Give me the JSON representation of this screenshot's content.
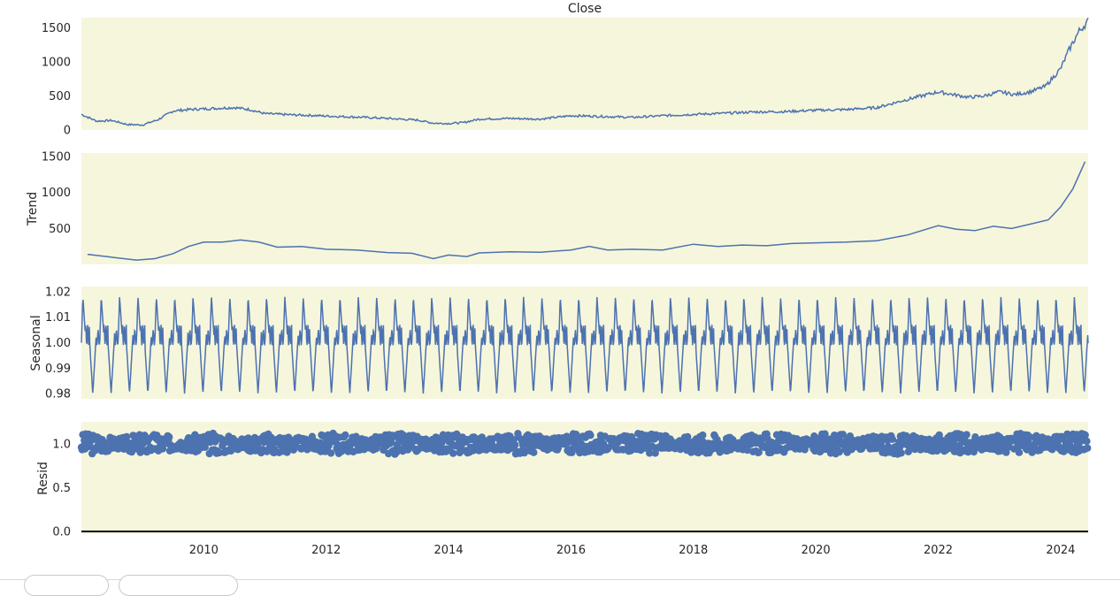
{
  "chart_data": [
    {
      "type": "line",
      "title": "Close",
      "ylabel": "",
      "xlim": [
        2008.0,
        2024.45
      ],
      "ylim": [
        0,
        1650
      ],
      "yticks": [
        0,
        500,
        1000,
        1500
      ],
      "x": [
        2008.0,
        2008.25,
        2008.5,
        2008.75,
        2009.0,
        2009.25,
        2009.5,
        2009.75,
        2010.0,
        2010.25,
        2010.5,
        2010.75,
        2011.0,
        2011.25,
        2011.5,
        2011.75,
        2012.0,
        2012.5,
        2013.0,
        2013.5,
        2013.75,
        2014.0,
        2014.25,
        2014.5,
        2015.0,
        2015.5,
        2016.0,
        2016.5,
        2017.0,
        2017.5,
        2018.0,
        2018.5,
        2019.0,
        2019.5,
        2020.0,
        2020.5,
        2021.0,
        2021.5,
        2022.0,
        2022.25,
        2022.5,
        2022.75,
        2023.0,
        2023.25,
        2023.5,
        2023.75,
        2024.0,
        2024.15,
        2024.3,
        2024.45
      ],
      "y": [
        230,
        130,
        140,
        80,
        75,
        150,
        280,
        300,
        310,
        320,
        330,
        300,
        240,
        230,
        220,
        215,
        205,
        190,
        170,
        145,
        100,
        95,
        110,
        160,
        170,
        160,
        210,
        200,
        185,
        210,
        230,
        245,
        265,
        270,
        290,
        300,
        330,
        450,
        560,
        520,
        480,
        500,
        560,
        520,
        560,
        640,
        900,
        1200,
        1450,
        1600
      ]
    },
    {
      "type": "line",
      "title": "",
      "ylabel": "Trend",
      "xlim": [
        2008.0,
        2024.45
      ],
      "ylim": [
        0,
        1550
      ],
      "yticks": [
        500,
        1000,
        1500
      ],
      "x": [
        2008.1,
        2008.5,
        2008.9,
        2009.2,
        2009.5,
        2009.75,
        2010.0,
        2010.3,
        2010.6,
        2010.9,
        2011.2,
        2011.6,
        2012.0,
        2012.5,
        2013.0,
        2013.4,
        2013.75,
        2014.0,
        2014.3,
        2014.5,
        2015.0,
        2015.5,
        2016.0,
        2016.3,
        2016.6,
        2017.0,
        2017.5,
        2018.0,
        2018.4,
        2018.8,
        2019.2,
        2019.6,
        2020.0,
        2020.5,
        2021.0,
        2021.5,
        2022.0,
        2022.3,
        2022.6,
        2022.9,
        2023.2,
        2023.5,
        2023.8,
        2024.0,
        2024.2,
        2024.4
      ],
      "y": [
        140,
        100,
        60,
        80,
        150,
        250,
        310,
        310,
        340,
        310,
        240,
        250,
        210,
        200,
        165,
        155,
        80,
        130,
        110,
        160,
        175,
        170,
        200,
        250,
        200,
        210,
        200,
        280,
        250,
        270,
        260,
        290,
        300,
        310,
        330,
        410,
        540,
        490,
        470,
        530,
        500,
        560,
        620,
        800,
        1050,
        1430
      ]
    },
    {
      "type": "line",
      "title": "",
      "ylabel": "Seasonal",
      "xlim": [
        2008.0,
        2024.45
      ],
      "ylim": [
        0.978,
        1.022
      ],
      "yticks": [
        0.98,
        0.99,
        1.0,
        1.01,
        1.02
      ],
      "ytick_labels": [
        "0.98",
        "0.99",
        "1.00",
        "1.01",
        "1.02"
      ],
      "period_years": 0.3,
      "peak": 1.018,
      "trough": 0.98
    },
    {
      "type": "scatter",
      "title": "",
      "ylabel": "Resid",
      "xlim": [
        2008.0,
        2024.45
      ],
      "ylim": [
        -0.03,
        1.25
      ],
      "yticks": [
        0.0,
        0.5,
        1.0
      ],
      "ytick_labels": [
        "0.0",
        "0.5",
        "1.0"
      ],
      "xticks": [
        2010,
        2012,
        2014,
        2016,
        2018,
        2020,
        2022,
        2024
      ],
      "xtick_labels": [
        "2010",
        "2012",
        "2014",
        "2016",
        "2018",
        "2020",
        "2022",
        "2024"
      ],
      "center": 1.0,
      "spread_range": [
        0.8,
        1.2
      ]
    }
  ],
  "colors": {
    "panel_bg": "#f6f6dc",
    "line": "#4c72b0",
    "zero_line": "#000000"
  }
}
